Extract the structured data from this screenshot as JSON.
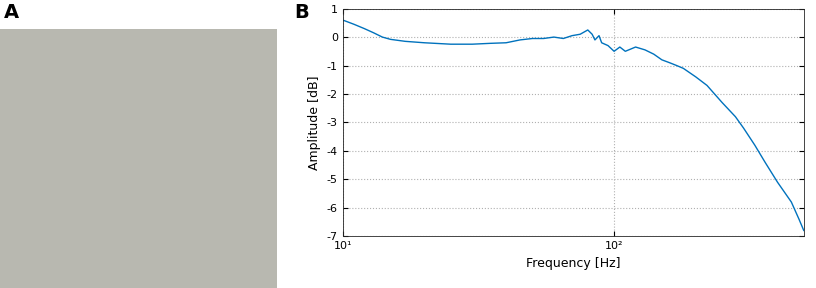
{
  "panel_labels": [
    "A",
    "B"
  ],
  "chart_data": {
    "type": "line",
    "x_label": "Frequency [Hz]",
    "y_label": "Amplitude [dB]",
    "log": "x",
    "grid": true,
    "color": "#0072bd",
    "x": [
      10,
      11,
      12,
      13,
      14,
      15,
      17,
      20,
      25,
      30,
      35,
      40,
      45,
      50,
      55,
      60,
      65,
      70,
      75,
      80,
      83,
      85,
      88,
      90,
      95,
      100,
      105,
      110,
      120,
      130,
      140,
      150,
      160,
      170,
      180,
      200,
      220,
      250,
      280,
      300,
      330,
      360,
      400,
      450,
      480,
      500
    ],
    "values": [
      0.6,
      0.45,
      0.3,
      0.15,
      0.0,
      -0.08,
      -0.15,
      -0.2,
      -0.25,
      -0.25,
      -0.22,
      -0.2,
      -0.1,
      -0.05,
      -0.05,
      0.0,
      -0.05,
      0.05,
      0.1,
      0.25,
      0.1,
      -0.1,
      0.05,
      -0.2,
      -0.3,
      -0.5,
      -0.35,
      -0.5,
      -0.35,
      -0.45,
      -0.6,
      -0.8,
      -0.9,
      -1.0,
      -1.1,
      -1.4,
      -1.7,
      -2.3,
      -2.8,
      -3.2,
      -3.8,
      -4.4,
      -5.1,
      -5.8,
      -6.4,
      -6.8
    ],
    "xlim": [
      10,
      500
    ],
    "xticks": [
      {
        "value": 10,
        "label": "10¹"
      },
      {
        "value": 100,
        "label": "10²"
      }
    ],
    "ylim": [
      -7,
      1
    ],
    "yticks": [
      -7,
      -6,
      -5,
      -4,
      -3,
      -2,
      -1,
      0,
      1
    ]
  }
}
